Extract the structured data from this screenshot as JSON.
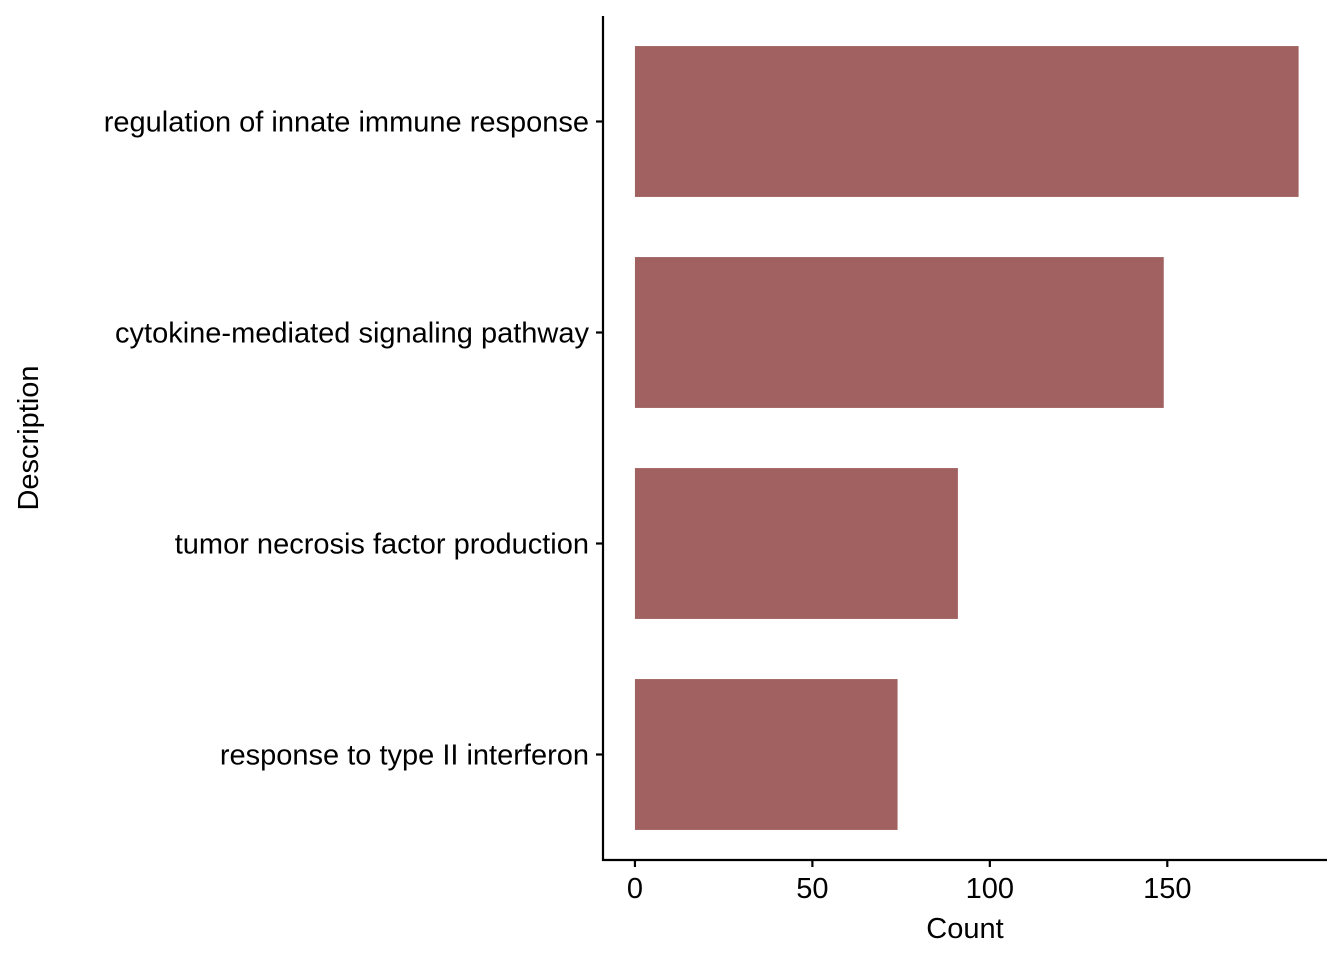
{
  "chart_data": {
    "type": "bar",
    "orientation": "horizontal",
    "categories": [
      "regulation of innate immune response",
      "cytokine-mediated signaling pathway",
      "tumor necrosis factor production",
      "response to type II interferon"
    ],
    "values": [
      187,
      149,
      91,
      74
    ],
    "bar_color": "#a06160",
    "xlabel": "Count",
    "ylabel": "Description",
    "x_ticks": [
      0,
      50,
      100,
      150
    ],
    "xlim": [
      -9,
      195
    ],
    "grid": false,
    "legend": "none"
  }
}
